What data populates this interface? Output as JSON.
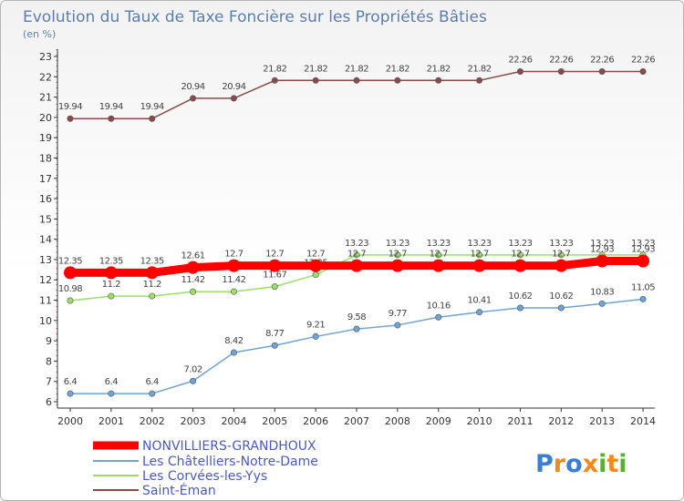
{
  "chart_data": {
    "type": "line",
    "title": "Evolution du Taux de Taxe Foncière sur les Propriétés Bâties",
    "subtitle": "(en %)",
    "xlabel": "",
    "ylabel": "",
    "ylim": [
      6,
      23
    ],
    "y_ticks": [
      "6",
      "7",
      "8",
      "9",
      "10",
      "11",
      "12",
      "13",
      "14",
      "15",
      "16",
      "17",
      "18",
      "19",
      "20",
      "21",
      "22",
      "23"
    ],
    "categories": [
      "2000",
      "2001",
      "2002",
      "2003",
      "2004",
      "2005",
      "2006",
      "2007",
      "2008",
      "2009",
      "2010",
      "2011",
      "2012",
      "2013",
      "2014"
    ],
    "series": [
      {
        "name": "NONVILLIERS-GRANDHOUX",
        "color": "#ff0000",
        "values": [
          12.35,
          12.35,
          12.35,
          12.61,
          12.7,
          12.7,
          12.7,
          12.7,
          12.7,
          12.7,
          12.7,
          12.7,
          12.7,
          12.93,
          12.93
        ],
        "labels": [
          "12.35",
          "12.35",
          "12.35",
          "12.61",
          "12.7",
          "12.7",
          "12.7",
          "12.7",
          "12.7",
          "12.7",
          "12.7",
          "12.7",
          "12.7",
          "12.93",
          "12.93"
        ]
      },
      {
        "name": "Les Châtelliers-Notre-Dame",
        "color": "#6fa3d5",
        "values": [
          6.4,
          6.4,
          6.4,
          7.02,
          8.42,
          8.77,
          9.21,
          9.58,
          9.77,
          10.16,
          10.41,
          10.62,
          10.62,
          10.83,
          11.05
        ],
        "labels": [
          "6.4",
          "6.4",
          "6.4",
          "7.02",
          "8.42",
          "8.77",
          "9.21",
          "9.58",
          "9.77",
          "10.16",
          "10.41",
          "10.62",
          "10.62",
          "10.83",
          "11.05"
        ]
      },
      {
        "name": "Les Corvées-les-Yys",
        "color": "#99e066",
        "values": [
          10.98,
          11.2,
          11.2,
          11.42,
          11.42,
          11.67,
          12.25,
          13.23,
          13.23,
          13.23,
          13.23,
          13.23,
          13.23,
          13.23,
          13.23
        ],
        "labels": [
          "10.98",
          "11.2",
          "11.2",
          "11.42",
          "11.42",
          "11.67",
          "12.25",
          "13.23",
          "13.23",
          "13.23",
          "13.23",
          "13.23",
          "13.23",
          "13.23",
          "13.23"
        ]
      },
      {
        "name": "Saint-Éman",
        "color": "#8b4a4a",
        "values": [
          19.94,
          19.94,
          19.94,
          20.94,
          20.94,
          21.82,
          21.82,
          21.82,
          21.82,
          21.82,
          21.82,
          22.26,
          22.26,
          22.26,
          22.26
        ],
        "labels": [
          "19.94",
          "19.94",
          "19.94",
          "20.94",
          "20.94",
          "21.82",
          "21.82",
          "21.82",
          "21.82",
          "21.82",
          "21.82",
          "22.26",
          "22.26",
          "22.26",
          "22.26"
        ]
      }
    ],
    "grid": false,
    "legend_position": "bottom-left"
  },
  "logo": {
    "letters": [
      "P",
      "r",
      "o",
      "x",
      "i",
      "t",
      "i"
    ],
    "colors": [
      "#3a7fd0",
      "#f08a1c",
      "#3a7fd0",
      "#f08a1c",
      "#58b030",
      "#f08a1c",
      "#58b030"
    ]
  }
}
